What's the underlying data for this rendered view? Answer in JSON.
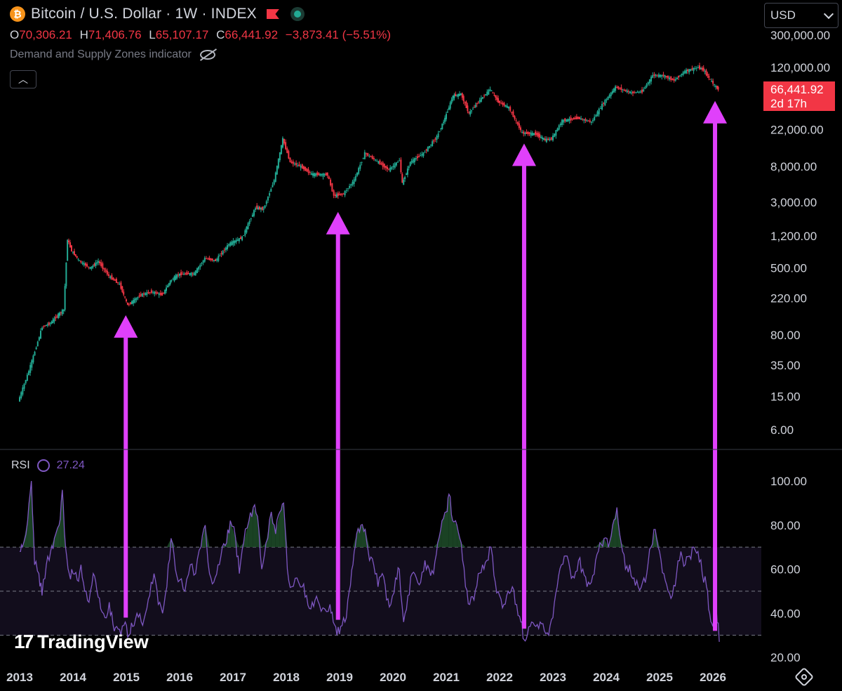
{
  "header": {
    "title": "Bitcoin / U.S. Dollar · 1W · INDEX",
    "ohlc": {
      "o_label": "O",
      "o": "70,306.21",
      "h_label": "H",
      "h": "71,406.76",
      "l_label": "L",
      "l": "65,107.17",
      "c_label": "C",
      "c": "66,441.92",
      "change": "−3,873.41 (−5.51%)"
    },
    "indicator": "Demand and Supply Zones indicator",
    "currency": "USD"
  },
  "price_badge": {
    "price": "66,441.92",
    "countdown": "2d 17h"
  },
  "rsi": {
    "label": "RSI",
    "value": "27.24"
  },
  "branding": {
    "logo_mark": "17",
    "logo_text": "TradingView"
  },
  "colors": {
    "up": "#22ab94",
    "down": "#f23645",
    "rsi": "#7e57c2",
    "arrow": "#e040fb",
    "grid": "#2a2e39"
  },
  "chart_data": [
    {
      "type": "line",
      "y_scale": "log",
      "price_ticks": [
        {
          "label": "300,000.00",
          "value": 300000
        },
        {
          "label": "120,000.00",
          "value": 120000
        },
        {
          "label": "22,000.00",
          "value": 22000
        },
        {
          "label": "8,000.00",
          "value": 8000
        },
        {
          "label": "3,000.00",
          "value": 3000
        },
        {
          "label": "1,200.00",
          "value": 1200
        },
        {
          "label": "500.00",
          "value": 500
        },
        {
          "label": "220.00",
          "value": 220
        },
        {
          "label": "80.00",
          "value": 80
        },
        {
          "label": "35.00",
          "value": 35
        },
        {
          "label": "15.00",
          "value": 15
        },
        {
          "label": "6.00",
          "value": 6
        }
      ],
      "x_ticks": [
        "2013",
        "2014",
        "2015",
        "2016",
        "2017",
        "2018",
        "2019",
        "2020",
        "2021",
        "2022",
        "2023",
        "2024",
        "2025",
        "2026"
      ],
      "series": [
        {
          "values": [
            [
              2013.0,
              13
            ],
            [
              2013.2,
              30
            ],
            [
              2013.45,
              100
            ],
            [
              2013.6,
              110
            ],
            [
              2013.75,
              140
            ],
            [
              2013.85,
              160
            ],
            [
              2013.92,
              1100
            ],
            [
              2014.0,
              800
            ],
            [
              2014.15,
              600
            ],
            [
              2014.35,
              500
            ],
            [
              2014.5,
              600
            ],
            [
              2014.7,
              400
            ],
            [
              2014.9,
              320
            ],
            [
              2015.05,
              180
            ],
            [
              2015.3,
              240
            ],
            [
              2015.5,
              260
            ],
            [
              2015.7,
              240
            ],
            [
              2015.85,
              350
            ],
            [
              2016.0,
              420
            ],
            [
              2016.3,
              430
            ],
            [
              2016.5,
              650
            ],
            [
              2016.7,
              610
            ],
            [
              2016.95,
              960
            ],
            [
              2017.2,
              1150
            ],
            [
              2017.45,
              2600
            ],
            [
              2017.6,
              2500
            ],
            [
              2017.8,
              5500
            ],
            [
              2017.96,
              17000
            ],
            [
              2018.1,
              9000
            ],
            [
              2018.3,
              8000
            ],
            [
              2018.5,
              6500
            ],
            [
              2018.8,
              6400
            ],
            [
              2018.92,
              3600
            ],
            [
              2019.1,
              3800
            ],
            [
              2019.3,
              5500
            ],
            [
              2019.5,
              11500
            ],
            [
              2019.7,
              9500
            ],
            [
              2019.95,
              7300
            ],
            [
              2020.15,
              9500
            ],
            [
              2020.2,
              5000
            ],
            [
              2020.35,
              9000
            ],
            [
              2020.6,
              11500
            ],
            [
              2020.85,
              18000
            ],
            [
              2021.0,
              30000
            ],
            [
              2021.15,
              55000
            ],
            [
              2021.3,
              58000
            ],
            [
              2021.45,
              34000
            ],
            [
              2021.6,
              45000
            ],
            [
              2021.85,
              66000
            ],
            [
              2022.0,
              47000
            ],
            [
              2022.2,
              40000
            ],
            [
              2022.45,
              20000
            ],
            [
              2022.7,
              19500
            ],
            [
              2022.88,
              16500
            ],
            [
              2023.0,
              17000
            ],
            [
              2023.2,
              28000
            ],
            [
              2023.5,
              30000
            ],
            [
              2023.75,
              27000
            ],
            [
              2023.95,
              43000
            ],
            [
              2024.2,
              70000
            ],
            [
              2024.5,
              60000
            ],
            [
              2024.7,
              62000
            ],
            [
              2024.9,
              97000
            ],
            [
              2025.1,
              96000
            ],
            [
              2025.3,
              84000
            ],
            [
              2025.5,
              108000
            ],
            [
              2025.75,
              120000
            ],
            [
              2025.85,
              112000
            ],
            [
              2025.95,
              90000
            ],
            [
              2026.08,
              70306
            ],
            [
              2026.12,
              66441
            ]
          ]
        }
      ]
    },
    {
      "type": "line",
      "ylim": [
        20,
        110
      ],
      "y_ticks": [
        "100.00",
        "80.00",
        "60.00",
        "40.00",
        "20.00"
      ],
      "bands": {
        "upper": 70,
        "middle": 50,
        "lower": 30
      },
      "series": [
        {
          "name": "RSI",
          "values": [
            [
              2013.0,
              68
            ],
            [
              2013.05,
              70
            ],
            [
              2013.15,
              82
            ],
            [
              2013.22,
              100
            ],
            [
              2013.28,
              62
            ],
            [
              2013.36,
              58
            ],
            [
              2013.42,
              48
            ],
            [
              2013.5,
              62
            ],
            [
              2013.58,
              68
            ],
            [
              2013.65,
              74
            ],
            [
              2013.74,
              80
            ],
            [
              2013.8,
              96
            ],
            [
              2013.86,
              70
            ],
            [
              2013.93,
              58
            ],
            [
              2014.0,
              58
            ],
            [
              2014.08,
              55
            ],
            [
              2014.15,
              62
            ],
            [
              2014.22,
              50
            ],
            [
              2014.3,
              45
            ],
            [
              2014.38,
              58
            ],
            [
              2014.45,
              50
            ],
            [
              2014.52,
              42
            ],
            [
              2014.6,
              38
            ],
            [
              2014.68,
              45
            ],
            [
              2014.75,
              35
            ],
            [
              2014.82,
              34
            ],
            [
              2014.9,
              30
            ],
            [
              2014.98,
              36
            ],
            [
              2015.05,
              30
            ],
            [
              2015.12,
              34
            ],
            [
              2015.2,
              40
            ],
            [
              2015.28,
              36
            ],
            [
              2015.36,
              40
            ],
            [
              2015.44,
              48
            ],
            [
              2015.52,
              58
            ],
            [
              2015.6,
              44
            ],
            [
              2015.68,
              40
            ],
            [
              2015.76,
              52
            ],
            [
              2015.84,
              74
            ],
            [
              2015.92,
              60
            ],
            [
              2016.0,
              55
            ],
            [
              2016.1,
              50
            ],
            [
              2016.2,
              62
            ],
            [
              2016.3,
              58
            ],
            [
              2016.4,
              70
            ],
            [
              2016.48,
              80
            ],
            [
              2016.56,
              58
            ],
            [
              2016.64,
              54
            ],
            [
              2016.72,
              62
            ],
            [
              2016.8,
              70
            ],
            [
              2016.88,
              72
            ],
            [
              2016.95,
              82
            ],
            [
              2017.05,
              74
            ],
            [
              2017.12,
              58
            ],
            [
              2017.2,
              72
            ],
            [
              2017.3,
              82
            ],
            [
              2017.38,
              88
            ],
            [
              2017.46,
              84
            ],
            [
              2017.54,
              60
            ],
            [
              2017.62,
              72
            ],
            [
              2017.72,
              86
            ],
            [
              2017.8,
              76
            ],
            [
              2017.88,
              86
            ],
            [
              2017.95,
              90
            ],
            [
              2018.02,
              60
            ],
            [
              2018.1,
              52
            ],
            [
              2018.2,
              56
            ],
            [
              2018.3,
              52
            ],
            [
              2018.38,
              48
            ],
            [
              2018.46,
              42
            ],
            [
              2018.54,
              46
            ],
            [
              2018.62,
              44
            ],
            [
              2018.72,
              42
            ],
            [
              2018.82,
              44
            ],
            [
              2018.88,
              36
            ],
            [
              2018.95,
              30
            ],
            [
              2019.02,
              34
            ],
            [
              2019.1,
              36
            ],
            [
              2019.18,
              50
            ],
            [
              2019.25,
              62
            ],
            [
              2019.32,
              76
            ],
            [
              2019.4,
              80
            ],
            [
              2019.48,
              78
            ],
            [
              2019.56,
              64
            ],
            [
              2019.64,
              62
            ],
            [
              2019.72,
              52
            ],
            [
              2019.8,
              58
            ],
            [
              2019.88,
              46
            ],
            [
              2019.96,
              44
            ],
            [
              2020.05,
              56
            ],
            [
              2020.12,
              60
            ],
            [
              2020.2,
              36
            ],
            [
              2020.28,
              48
            ],
            [
              2020.36,
              58
            ],
            [
              2020.44,
              56
            ],
            [
              2020.52,
              54
            ],
            [
              2020.6,
              64
            ],
            [
              2020.68,
              60
            ],
            [
              2020.76,
              58
            ],
            [
              2020.84,
              72
            ],
            [
              2020.92,
              82
            ],
            [
              2021.0,
              86
            ],
            [
              2021.05,
              94
            ],
            [
              2021.12,
              82
            ],
            [
              2021.2,
              80
            ],
            [
              2021.28,
              72
            ],
            [
              2021.36,
              52
            ],
            [
              2021.44,
              44
            ],
            [
              2021.52,
              46
            ],
            [
              2021.6,
              58
            ],
            [
              2021.68,
              62
            ],
            [
              2021.76,
              64
            ],
            [
              2021.84,
              70
            ],
            [
              2021.92,
              54
            ],
            [
              2022.0,
              48
            ],
            [
              2022.08,
              44
            ],
            [
              2022.16,
              50
            ],
            [
              2022.24,
              52
            ],
            [
              2022.32,
              44
            ],
            [
              2022.4,
              36
            ],
            [
              2022.46,
              28
            ],
            [
              2022.52,
              30
            ],
            [
              2022.6,
              36
            ],
            [
              2022.68,
              34
            ],
            [
              2022.76,
              36
            ],
            [
              2022.84,
              32
            ],
            [
              2022.92,
              30
            ],
            [
              2023.0,
              38
            ],
            [
              2023.08,
              52
            ],
            [
              2023.16,
              62
            ],
            [
              2023.24,
              66
            ],
            [
              2023.32,
              60
            ],
            [
              2023.4,
              56
            ],
            [
              2023.48,
              64
            ],
            [
              2023.56,
              60
            ],
            [
              2023.64,
              52
            ],
            [
              2023.72,
              54
            ],
            [
              2023.8,
              64
            ],
            [
              2023.88,
              72
            ],
            [
              2023.96,
              74
            ],
            [
              2024.04,
              70
            ],
            [
              2024.12,
              80
            ],
            [
              2024.2,
              88
            ],
            [
              2024.28,
              72
            ],
            [
              2024.36,
              60
            ],
            [
              2024.44,
              62
            ],
            [
              2024.52,
              56
            ],
            [
              2024.6,
              52
            ],
            [
              2024.68,
              54
            ],
            [
              2024.76,
              58
            ],
            [
              2024.84,
              70
            ],
            [
              2024.92,
              78
            ],
            [
              2025.0,
              68
            ],
            [
              2025.08,
              58
            ],
            [
              2025.16,
              50
            ],
            [
              2025.24,
              48
            ],
            [
              2025.32,
              58
            ],
            [
              2025.4,
              68
            ],
            [
              2025.48,
              62
            ],
            [
              2025.56,
              66
            ],
            [
              2025.64,
              70
            ],
            [
              2025.72,
              68
            ],
            [
              2025.8,
              58
            ],
            [
              2025.88,
              52
            ],
            [
              2025.94,
              40
            ],
            [
              2026.0,
              34
            ],
            [
              2026.06,
              44
            ],
            [
              2026.12,
              27
            ]
          ]
        }
      ]
    }
  ],
  "annotations": {
    "arrows": [
      {
        "x": 2014.99,
        "from_price": 160,
        "to_price_rsi": 38
      },
      {
        "x": 2018.97,
        "from_price": 2700,
        "to_price_rsi": 37
      },
      {
        "x": 2022.46,
        "from_price": 17500,
        "to_price_rsi": 33
      },
      {
        "x": 2026.04,
        "from_price": 56000,
        "to_price_rsi": 32
      }
    ]
  }
}
